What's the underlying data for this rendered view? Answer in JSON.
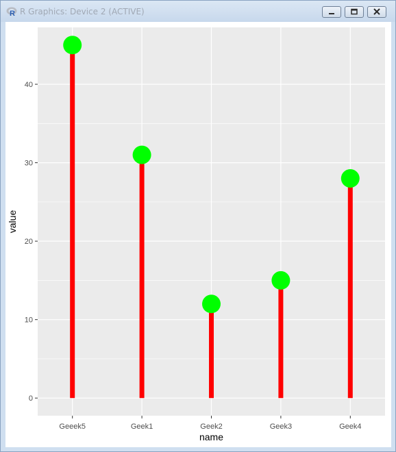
{
  "window": {
    "title": "R Graphics: Device 2 (ACTIVE)",
    "app_icon": "r-logo-icon",
    "buttons": [
      "minimize-icon",
      "restore-icon",
      "close-icon"
    ]
  },
  "chart_data": {
    "type": "lollipop",
    "categories": [
      "Geeek5",
      "Geek1",
      "Geek2",
      "Geek3",
      "Geek4"
    ],
    "values": [
      45,
      31,
      12,
      15,
      28
    ],
    "xlabel": "name",
    "ylabel": "value",
    "ylim": [
      -2.25,
      47.25
    ],
    "yticks": [
      0,
      10,
      20,
      30,
      40
    ],
    "ytick_labels": [
      "0",
      "10",
      "20",
      "30",
      "40"
    ],
    "grid": true,
    "colors": {
      "panel": "#ebebeb",
      "grid": "#ffffff",
      "stem": "#ff0000",
      "point": "#00ff00"
    }
  }
}
